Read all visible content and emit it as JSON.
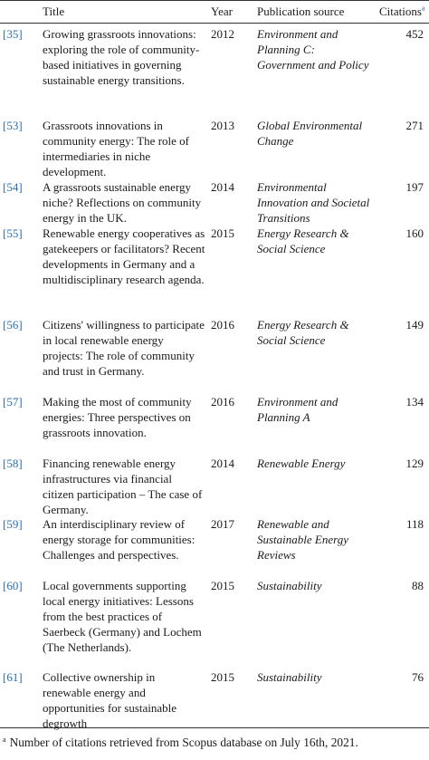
{
  "header": {
    "title": "Title",
    "year": "Year",
    "source": "Publication source",
    "citations": "Citations",
    "citations_mark": "a"
  },
  "rows": [
    {
      "ref": "[35]",
      "title": "Growing grassroots innovations: exploring the role of community-based initiatives in governing sustainable energy transitions.",
      "year": "2012",
      "source": "Environment and Planning C: Government and Policy",
      "citations": "452"
    },
    {
      "ref": "[53]",
      "title": "Grassroots innovations in community energy: The role of intermediaries in niche development.",
      "year": "2013",
      "source": "Global Environmental Change",
      "citations": "271"
    },
    {
      "ref": "[54]",
      "title": "A grassroots sustainable energy niche? Reflections on community energy in the UK.",
      "year": "2014",
      "source": "Environmental Innovation and Societal Transitions",
      "citations": "197"
    },
    {
      "ref": "[55]",
      "title": "Renewable energy cooperatives as gatekeepers or facilitators? Recent developments in Germany and a multidisciplinary research agenda.",
      "year": "2015",
      "source": "Energy Research & Social Science",
      "citations": "160"
    },
    {
      "ref": "[56]",
      "title": "Citizens' willingness to participate in local renewable energy projects: The role of community and trust in Germany.",
      "year": "2016",
      "source": "Energy Research & Social Science",
      "citations": "149"
    },
    {
      "ref": "[57]",
      "title": "Making the most of community energies: Three perspectives on grassroots innovation.",
      "year": "2016",
      "source": "Environment and Planning A",
      "citations": "134"
    },
    {
      "ref": "[58]",
      "title": "Financing renewable energy infrastructures via financial citizen participation – The case of Germany.",
      "year": "2014",
      "source": "Renewable Energy",
      "citations": "129"
    },
    {
      "ref": "[59]",
      "title": "An interdisciplinary review of energy storage for communities: Challenges and perspectives.",
      "year": "2017",
      "source": "Renewable and Sustainable Energy Reviews",
      "citations": "118"
    },
    {
      "ref": "[60]",
      "title": "Local governments supporting local energy initiatives: Lessons from the best practices of Saerbeck (Germany) and Lochem (The Netherlands).",
      "year": "2015",
      "source": "Sustainability",
      "citations": "88"
    },
    {
      "ref": "[61]",
      "title": "Collective ownership in renewable energy and opportunities for sustainable degrowth",
      "year": "2015",
      "source": "Sustainability",
      "citations": "76"
    }
  ],
  "footnote": {
    "mark": "a",
    "text": "Number of citations retrieved from Scopus database on July 16th, 2021."
  }
}
